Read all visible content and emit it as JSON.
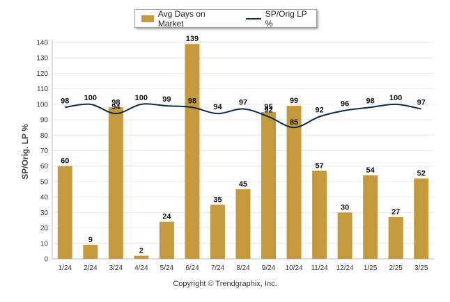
{
  "chart_data": {
    "type": "bar",
    "categories": [
      "1/24",
      "2/24",
      "3/24",
      "4/24",
      "5/24",
      "6/24",
      "7/24",
      "8/24",
      "9/24",
      "10/24",
      "11/24",
      "12/24",
      "1/25",
      "2/25",
      "3/25"
    ],
    "series": [
      {
        "name": "Avg Days on Market",
        "type": "bar",
        "color": "#c49a3c",
        "values": [
          60,
          9,
          98,
          2,
          24,
          139,
          35,
          45,
          95,
          99,
          57,
          30,
          54,
          27,
          52
        ]
      },
      {
        "name": "SP/Orig LP %",
        "type": "line",
        "color": "#0d2a4a",
        "values": [
          98,
          100,
          94,
          100,
          99,
          98,
          94,
          97,
          92,
          85,
          92,
          96,
          98,
          100,
          97
        ]
      }
    ],
    "ylabel": "SP/Orig. LP %",
    "ylim": [
      0,
      140
    ],
    "yticks": [
      0,
      10,
      20,
      30,
      40,
      50,
      60,
      70,
      80,
      90,
      100,
      110,
      120,
      130,
      140
    ],
    "grid": true,
    "legend_position": "top-center"
  },
  "legend": {
    "bar_label": "Avg Days on Market",
    "line_label": "SP/Orig LP %"
  },
  "footer": "Copyright © Trendgraphix, Inc."
}
